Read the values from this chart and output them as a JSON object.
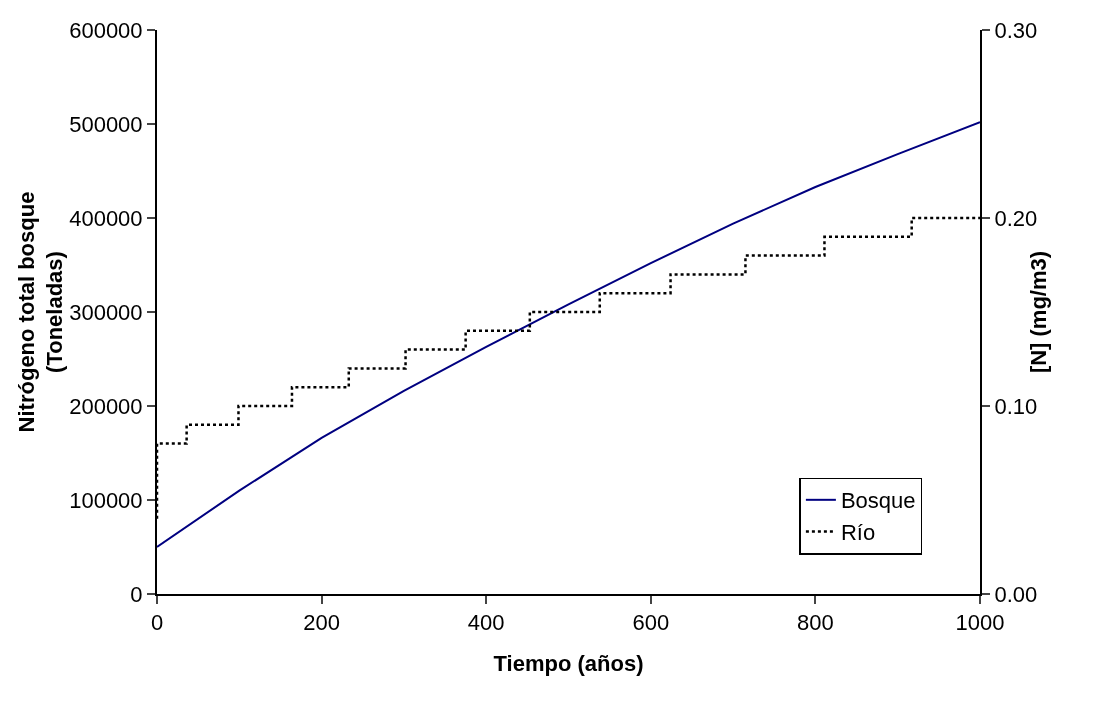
{
  "chart_data": {
    "type": "line",
    "xlabel": "Tiempo (años)",
    "ylabel": "Nitrógeno total bosque\n(Toneladas)",
    "y2label": "[N] (mg/m3)",
    "xlim": [
      0,
      1000
    ],
    "xticks": [
      0,
      200,
      400,
      600,
      800,
      1000
    ],
    "ylim": [
      0,
      600000
    ],
    "yticks": [
      0,
      100000,
      200000,
      300000,
      400000,
      500000,
      600000
    ],
    "y2lim": [
      0,
      0.3
    ],
    "y2ticks": [
      {
        "value": 0,
        "label": "0.00"
      },
      {
        "value": 0.1,
        "label": "0.10"
      },
      {
        "value": 0.2,
        "label": "0.20"
      },
      {
        "value": 0.3,
        "label": "0.30"
      }
    ],
    "grid": false,
    "legend": "bottom right",
    "series": [
      {
        "name": "Bosque",
        "color": "#000080",
        "line_style": "solid",
        "x": [
          0,
          100,
          200,
          300,
          400,
          500,
          600,
          700,
          800,
          900,
          1000
        ],
        "values": [
          50000,
          110000,
          166000,
          216000,
          263000,
          308000,
          352000,
          394000,
          433000,
          468000,
          502000
        ]
      },
      {
        "name": "Río",
        "type": "step",
        "axis": "y2",
        "color": "#000000",
        "line_style": "dotted",
        "x": [
          0,
          0,
          36,
          99,
          164,
          233,
          302,
          375,
          453,
          538,
          624,
          715,
          811,
          917,
          1000
        ],
        "values": [
          0.04,
          0.08,
          0.09,
          0.1,
          0.11,
          0.12,
          0.13,
          0.14,
          0.15,
          0.16,
          0.17,
          0.18,
          0.19,
          0.2,
          0.2
        ]
      }
    ]
  }
}
